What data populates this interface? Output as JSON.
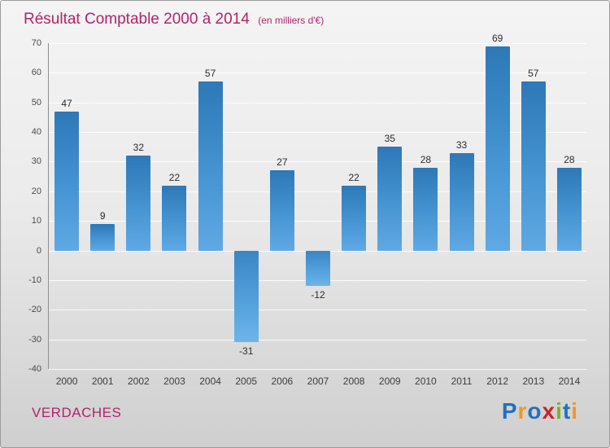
{
  "header": {
    "title": "Résultat Comptable 2000 à 2014",
    "subtitle": "(en milliers d'€)"
  },
  "footer": {
    "org": "VERDACHES",
    "logo_letters": [
      {
        "ch": "P",
        "color": "#2170c0"
      },
      {
        "ch": "r",
        "color": "#f7941d"
      },
      {
        "ch": "o",
        "color": "#2170c0"
      },
      {
        "ch": "x",
        "color": "#cc2229"
      },
      {
        "ch": "i",
        "color": "#7ab51d"
      },
      {
        "ch": "t",
        "color": "#2170c0"
      },
      {
        "ch": "i",
        "color": "#f7941d"
      }
    ]
  },
  "chart_data": {
    "type": "bar",
    "title": "Résultat Comptable 2000 à 2014",
    "subtitle": "(en milliers d'€)",
    "categories": [
      "2000",
      "2001",
      "2002",
      "2003",
      "2004",
      "2005",
      "2006",
      "2007",
      "2008",
      "2009",
      "2010",
      "2011",
      "2012",
      "2013",
      "2014"
    ],
    "values": [
      47,
      9,
      32,
      22,
      57,
      -31,
      27,
      -12,
      22,
      35,
      28,
      33,
      69,
      57,
      28
    ],
    "xlabel": "",
    "ylabel": "",
    "ylim": [
      -40,
      70
    ],
    "ytick_step": 10,
    "grid": true,
    "legend": "none",
    "bar_color": "#3d8dcc"
  }
}
